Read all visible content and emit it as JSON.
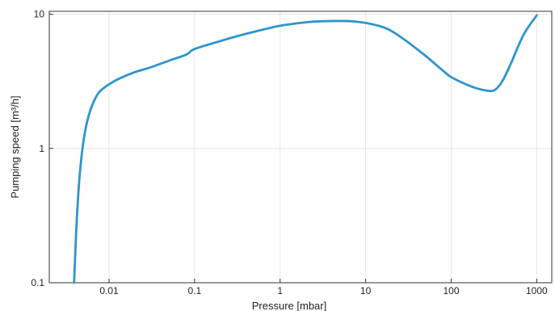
{
  "chart_data": {
    "type": "line",
    "title": "",
    "xlabel": "Pressure [mbar]",
    "ylabel": "Pumping speed [m³/h]",
    "x_scale": "log",
    "y_scale": "log",
    "xlim": [
      0.002,
      1500
    ],
    "ylim": [
      0.1,
      10.5
    ],
    "x_ticks": [
      0.01,
      0.1,
      1,
      10,
      100,
      1000
    ],
    "x_tick_labels": [
      "0.01",
      "0.1",
      "1",
      "10",
      "100",
      "1000"
    ],
    "y_ticks": [
      0.1,
      1,
      10
    ],
    "y_tick_labels": [
      "0.1",
      "1",
      "10"
    ],
    "grid": true,
    "legend": false,
    "series": [
      {
        "color": "#2e95cc",
        "x": [
          0.0039,
          0.0042,
          0.0046,
          0.0052,
          0.006,
          0.007,
          0.008,
          0.01,
          0.013,
          0.02,
          0.03,
          0.05,
          0.08,
          0.1,
          0.2,
          0.3,
          0.5,
          1,
          2,
          3,
          5,
          7,
          10,
          15,
          20,
          30,
          50,
          80,
          100,
          150,
          200,
          280,
          330,
          400,
          500,
          700,
          1000
        ],
        "y": [
          0.1,
          0.3,
          0.7,
          1.3,
          1.9,
          2.4,
          2.7,
          3.0,
          3.3,
          3.7,
          4.0,
          4.5,
          5.0,
          5.5,
          6.3,
          6.8,
          7.4,
          8.2,
          8.7,
          8.85,
          8.9,
          8.85,
          8.6,
          8.1,
          7.5,
          6.3,
          4.9,
          3.8,
          3.4,
          3.0,
          2.8,
          2.68,
          2.75,
          3.2,
          4.3,
          7.0,
          9.8
        ]
      }
    ]
  }
}
